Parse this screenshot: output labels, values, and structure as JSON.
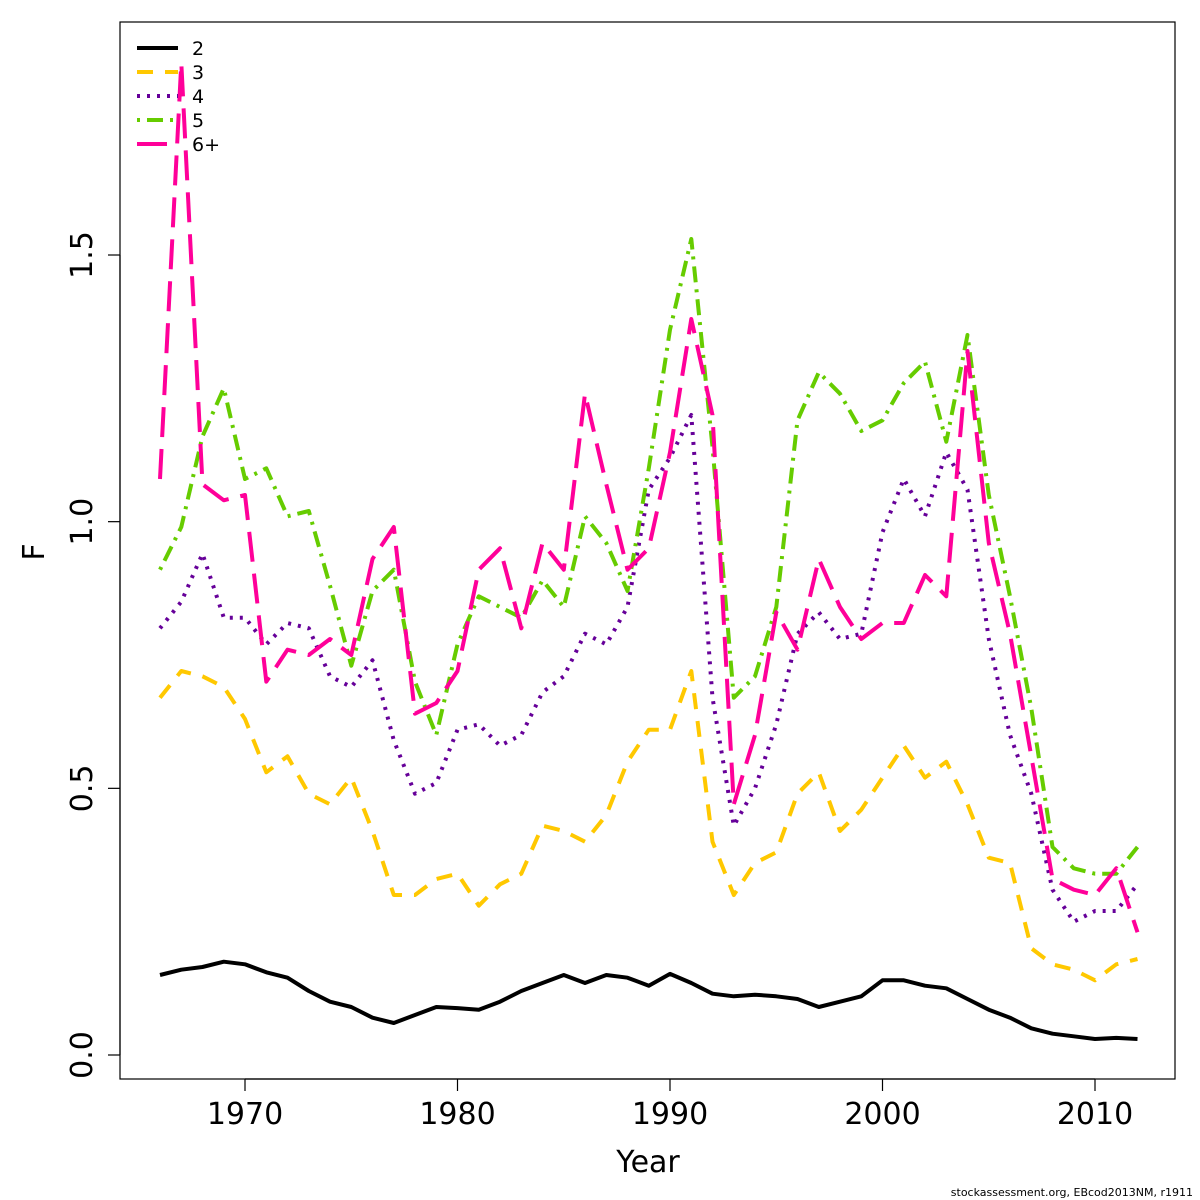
{
  "chart_data": {
    "type": "line",
    "xlabel": "Year",
    "ylabel": "F",
    "xlim": [
      1966,
      2012
    ],
    "ylim": [
      0,
      1.9
    ],
    "xticks": [
      "1970",
      "1980",
      "1990",
      "2000",
      "2010"
    ],
    "yticks": [
      "0.0",
      "0.5",
      "1.0",
      "1.5"
    ],
    "grid": false,
    "legend_position": "top-left",
    "x": [
      1966,
      1967,
      1968,
      1969,
      1970,
      1971,
      1972,
      1973,
      1974,
      1975,
      1976,
      1977,
      1978,
      1979,
      1980,
      1981,
      1982,
      1983,
      1984,
      1985,
      1986,
      1987,
      1988,
      1989,
      1990,
      1991,
      1992,
      1993,
      1994,
      1995,
      1996,
      1997,
      1998,
      1999,
      2000,
      2001,
      2002,
      2003,
      2004,
      2005,
      2006,
      2007,
      2008,
      2009,
      2010,
      2011,
      2012
    ],
    "series": [
      {
        "name": "2",
        "color": "#000000",
        "dash": "solid",
        "values": [
          0.15,
          0.16,
          0.165,
          0.175,
          0.17,
          0.155,
          0.145,
          0.12,
          0.1,
          0.09,
          0.07,
          0.06,
          0.075,
          0.09,
          0.088,
          0.085,
          0.1,
          0.12,
          0.135,
          0.15,
          0.135,
          0.15,
          0.145,
          0.13,
          0.152,
          0.135,
          0.115,
          0.11,
          0.113,
          0.11,
          0.105,
          0.09,
          0.1,
          0.11,
          0.14,
          0.14,
          0.13,
          0.125,
          0.105,
          0.085,
          0.07,
          0.05,
          0.04,
          0.035,
          0.03,
          0.032,
          0.03
        ]
      },
      {
        "name": "3",
        "color": "#FFC800",
        "dash": "dashed",
        "values": [
          0.67,
          0.72,
          0.71,
          0.69,
          0.63,
          0.53,
          0.56,
          0.49,
          0.47,
          0.52,
          0.42,
          0.3,
          0.3,
          0.33,
          0.34,
          0.28,
          0.32,
          0.34,
          0.43,
          0.42,
          0.4,
          0.45,
          0.55,
          0.61,
          0.61,
          0.72,
          0.4,
          0.3,
          0.36,
          0.38,
          0.49,
          0.53,
          0.42,
          0.46,
          0.52,
          0.58,
          0.52,
          0.55,
          0.47,
          0.37,
          0.36,
          0.2,
          0.17,
          0.16,
          0.14,
          0.17,
          0.18
        ]
      },
      {
        "name": "4",
        "color": "#660099",
        "dash": "dotted",
        "values": [
          0.8,
          0.85,
          0.94,
          0.82,
          0.82,
          0.77,
          0.81,
          0.8,
          0.71,
          0.69,
          0.74,
          0.59,
          0.49,
          0.51,
          0.61,
          0.62,
          0.58,
          0.6,
          0.68,
          0.71,
          0.79,
          0.77,
          0.84,
          1.06,
          1.12,
          1.2,
          0.67,
          0.43,
          0.5,
          0.62,
          0.79,
          0.83,
          0.78,
          0.79,
          0.98,
          1.08,
          1.01,
          1.13,
          1.06,
          0.78,
          0.6,
          0.49,
          0.31,
          0.25,
          0.27,
          0.27,
          0.32
        ]
      },
      {
        "name": "5",
        "color": "#66CC00",
        "dash": "dotdash",
        "values": [
          0.91,
          0.99,
          1.16,
          1.25,
          1.08,
          1.1,
          1.01,
          1.02,
          0.88,
          0.73,
          0.87,
          0.91,
          0.7,
          0.6,
          0.77,
          0.86,
          0.84,
          0.82,
          0.89,
          0.84,
          1.01,
          0.96,
          0.87,
          1.1,
          1.36,
          1.53,
          1.14,
          0.67,
          0.71,
          0.84,
          1.19,
          1.28,
          1.24,
          1.17,
          1.19,
          1.26,
          1.3,
          1.15,
          1.35,
          1.05,
          0.86,
          0.65,
          0.39,
          0.35,
          0.34,
          0.34,
          0.39
        ]
      },
      {
        "name": "6+",
        "color": "#FF0099",
        "dash": "longdash",
        "values": [
          1.08,
          1.86,
          1.07,
          1.04,
          1.05,
          0.7,
          0.76,
          0.75,
          0.78,
          0.75,
          0.93,
          0.99,
          0.64,
          0.66,
          0.72,
          0.91,
          0.95,
          0.8,
          0.96,
          0.91,
          1.24,
          1.07,
          0.91,
          0.95,
          1.13,
          1.38,
          1.2,
          0.47,
          0.6,
          0.83,
          0.76,
          0.93,
          0.84,
          0.78,
          0.81,
          0.81,
          0.9,
          0.86,
          1.32,
          0.96,
          0.79,
          0.56,
          0.33,
          0.31,
          0.3,
          0.35,
          0.23
        ]
      }
    ]
  },
  "footer": {
    "credit": "stockassessment.org, EBcod2013NM, r1911"
  }
}
